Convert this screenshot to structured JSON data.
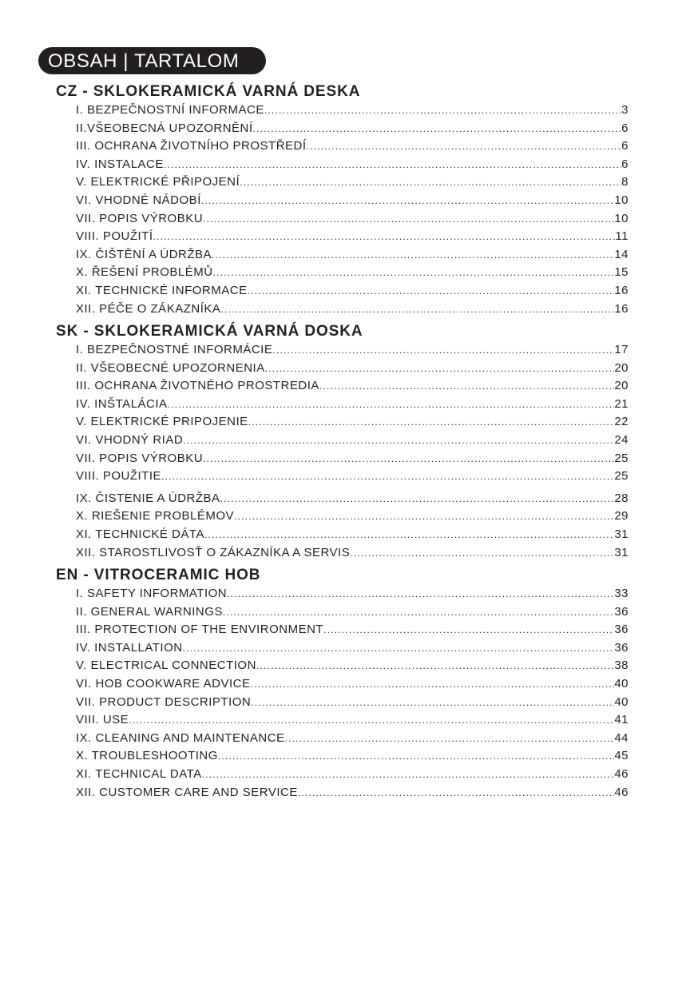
{
  "header": {
    "title": "OBSAH | TARTALOM"
  },
  "sections": [
    {
      "title": "CZ - SKLOKERAMICKÁ VARNÁ DESKA",
      "items": [
        {
          "label": "I. BEZPEČNOSTNÍ INFORMACE",
          "page": "3"
        },
        {
          "label": "II.VŠEOBECNÁ UPOZORNĚNÍ ",
          "page": "6"
        },
        {
          "label": "III. OCHRANA ŽIVOTNÍHO PROSTŘEDÍ",
          "page": "6"
        },
        {
          "label": "IV. INSTALACE",
          "page": "6"
        },
        {
          "label": "V. ELEKTRICKÉ PŘIPOJENÍ",
          "page": "8"
        },
        {
          "label": "VI. VHODNÉ NÁDOBÍ",
          "page": "10"
        },
        {
          "label": "VII. POPIS VÝROBKU ",
          "page": "10"
        },
        {
          "label": "VIII. POUŽITÍ",
          "page": "11"
        },
        {
          "label": "IX. ČIŠTĚNÍ A ÚDRŽBA",
          "page": "14"
        },
        {
          "label": "X. ŘEŠENÍ PROBLÉMŮ ",
          "page": "15"
        },
        {
          "label": "XI. TECHNICKÉ INFORMACE",
          "page": "16"
        },
        {
          "label": "XII. PÉČE O ZÁKAZNÍKA",
          "page": "16"
        }
      ]
    },
    {
      "title": "SK - SKLOKERAMICKÁ VARNÁ DOSKA",
      "items": [
        {
          "label": "I. BEZPEČNOSTNÉ INFORMÁCIE  ",
          "page": "17"
        },
        {
          "label": "II. VŠEOBECNÉ UPOZORNENIA",
          "page": "20"
        },
        {
          "label": "III. OCHRANA ŽIVOTNÉHO PROSTREDIA ",
          "page": "20"
        },
        {
          "label": "IV. INŠTALÁCIA",
          "page": "21"
        },
        {
          "label": "V. ELEKTRICKÉ PRIPOJENIE ",
          "page": "22"
        },
        {
          "label": "VI. VHODNÝ RIAD ",
          "page": "24"
        },
        {
          "label": "VII. POPIS VÝROBKU ",
          "page": "25"
        },
        {
          "label": "VIII. POUŽITIE ",
          "page": "25"
        },
        {
          "label": "IX. ČISTENIE A ÚDRŽBA ",
          "page": "28"
        },
        {
          "label": "X. RIEŠENIE PROBLÉMOV",
          "page": "29"
        },
        {
          "label": "XI. TECHNICKÉ DÁTA",
          "page": "31"
        },
        {
          "label": "XII. STAROSTLIVOSŤ O ZÁKAZNÍKA A SERVIS",
          "page": "31"
        }
      ]
    },
    {
      "title": "EN - VITROCERAMIC HOB",
      "items": [
        {
          "label": "I. SAFETY INFORMATION",
          "page": "33"
        },
        {
          "label": "II. GENERAL WARNINGS",
          "page": "36"
        },
        {
          "label": "III. PROTECTION OF THE ENVIRONMENT",
          "page": "36"
        },
        {
          "label": "IV. INSTALLATION ",
          "page": "36"
        },
        {
          "label": "V. ELECTRICAL CONNECTION ",
          "page": "38"
        },
        {
          "label": "VI. HOB COOKWARE ADVICE",
          "page": "40"
        },
        {
          "label": "VII. PRODUCT DESCRIPTION",
          "page": "40"
        },
        {
          "label": "VIII. USE ",
          "page": "41"
        },
        {
          "label": "IX. CLEANING AND MAINTENANCE ",
          "page": "44"
        },
        {
          "label": "X. TROUBLESHOOTING ",
          "page": "45"
        },
        {
          "label": "XI. TECHNICAL DATA",
          "page": "46"
        },
        {
          "label": "XII. CUSTOMER CARE AND SERVICE  ",
          "page": "46"
        }
      ]
    }
  ]
}
